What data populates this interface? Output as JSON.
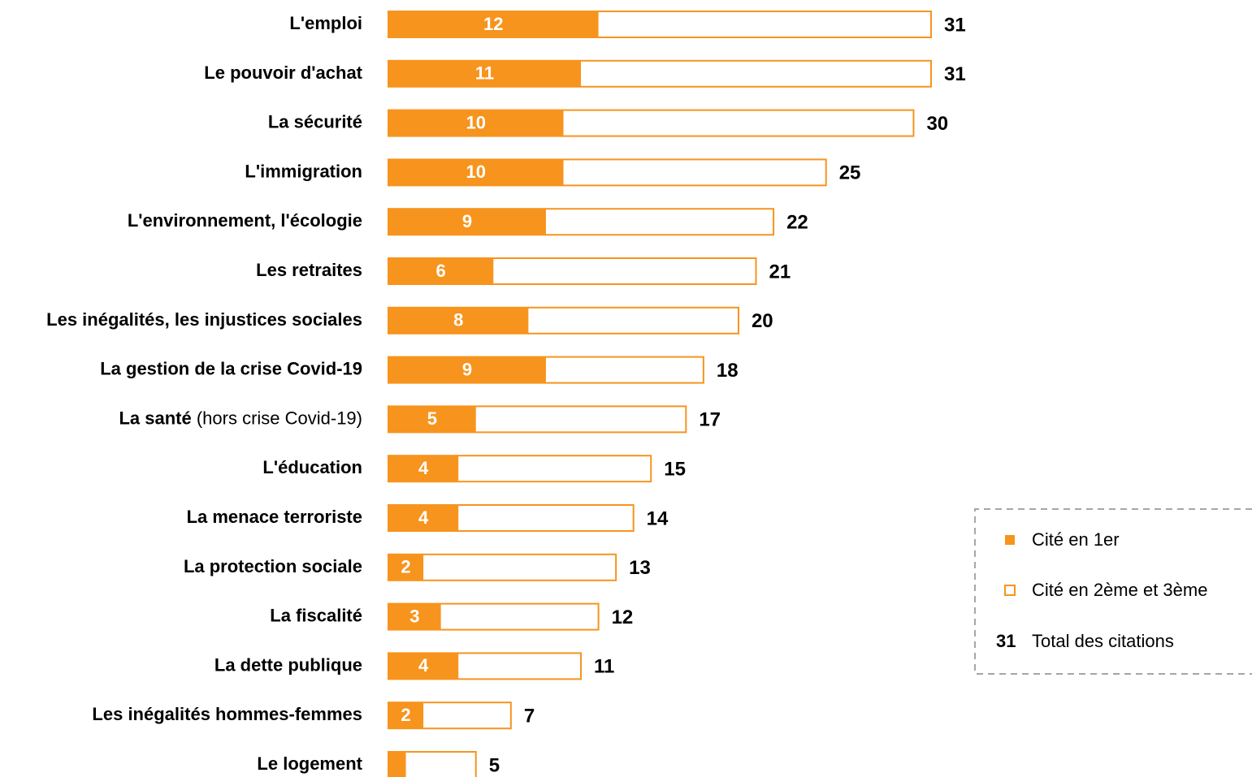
{
  "chart_data": {
    "type": "bar",
    "orientation": "horizontal",
    "categories": [
      "L'emploi",
      "Le pouvoir d'achat",
      "La sécurité",
      "L'immigration",
      "L'environnement, l'écologie",
      "Les retraites",
      "Les inégalités, les injustices sociales",
      "La gestion de la crise Covid-19",
      "La santé",
      "L'éducation",
      "La menace terroriste",
      "La protection sociale",
      "La fiscalité",
      "La dette publique",
      "Les inégalités hommes-femmes",
      "Le logement"
    ],
    "category_notes": [
      null,
      null,
      null,
      null,
      null,
      null,
      null,
      null,
      "(hors crise Covid-19)",
      null,
      null,
      null,
      null,
      null,
      null,
      null
    ],
    "series": [
      {
        "name": "Cité en 1er",
        "color": "#f7941d",
        "values": [
          12,
          11,
          10,
          10,
          9,
          6,
          8,
          9,
          5,
          4,
          4,
          2,
          3,
          4,
          2,
          1
        ],
        "value_labels": [
          "12",
          "11",
          "10",
          "10",
          "9",
          "6",
          "8",
          "9",
          "5",
          "4",
          "4",
          "2",
          "3",
          "4",
          "2",
          null
        ]
      },
      {
        "name": "Cité en 2ème et 3ème",
        "color": "#f7941d"
      }
    ],
    "totals": {
      "name": "Total des citations",
      "values": [
        31,
        31,
        30,
        25,
        22,
        21,
        20,
        18,
        17,
        15,
        14,
        13,
        12,
        11,
        7,
        5
      ]
    },
    "legend_sample": 31,
    "xlim": [
      0,
      31
    ]
  }
}
